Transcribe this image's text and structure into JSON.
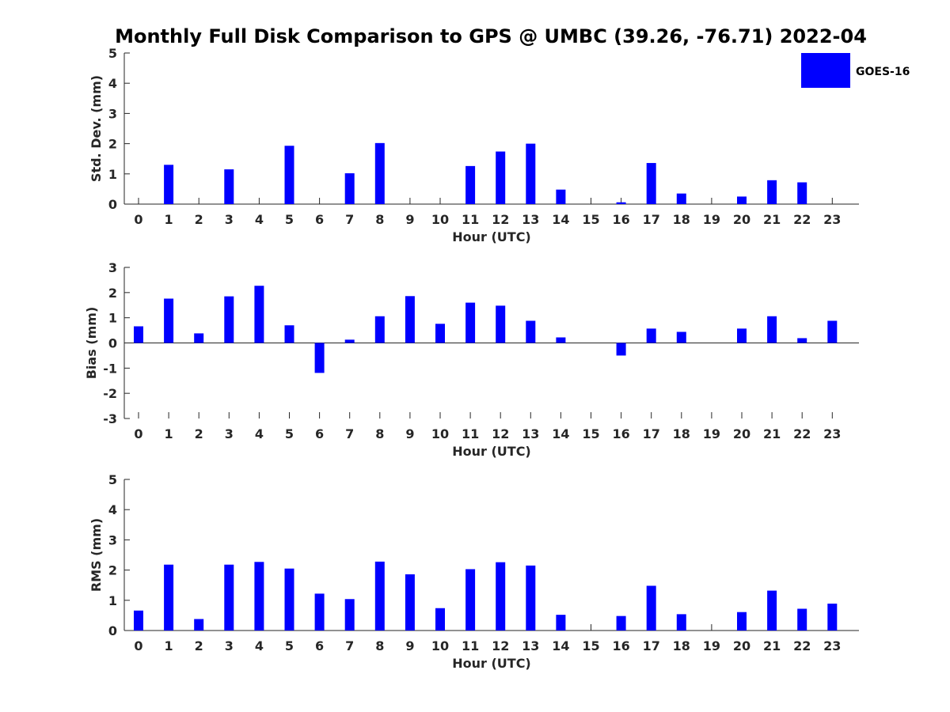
{
  "figure": {
    "title": "Monthly Full Disk Comparison to GPS @ UMBC (39.26, -76.71) 2022-04"
  },
  "legend": {
    "label": "GOES-16",
    "color": "#0000ff"
  },
  "chart_data": [
    {
      "type": "bar",
      "ylabel": "Std. Dev. (mm)",
      "xlabel": "Hour (UTC)",
      "ylim": [
        0,
        5
      ],
      "yticks": [
        0,
        1,
        2,
        3,
        4,
        5
      ],
      "categories": [
        "0",
        "1",
        "2",
        "3",
        "4",
        "5",
        "6",
        "7",
        "8",
        "9",
        "10",
        "11",
        "12",
        "13",
        "14",
        "15",
        "16",
        "17",
        "18",
        "19",
        "20",
        "21",
        "22",
        "23"
      ],
      "series": [
        {
          "name": "GOES-16",
          "color": "#0000ff",
          "values": [
            0,
            1.3,
            0,
            1.15,
            0,
            1.93,
            0,
            1.02,
            2.02,
            0,
            0,
            1.26,
            1.74,
            2.0,
            0.48,
            0,
            0.06,
            1.36,
            0.35,
            0,
            0.25,
            0.79,
            0.72,
            0
          ]
        }
      ],
      "legend": "top-right",
      "grid": false
    },
    {
      "type": "bar",
      "ylabel": "Bias (mm)",
      "xlabel": "Hour (UTC)",
      "ylim": [
        -3,
        3
      ],
      "yticks": [
        -3,
        -2,
        -1,
        0,
        1,
        2,
        3
      ],
      "categories": [
        "0",
        "1",
        "2",
        "3",
        "4",
        "5",
        "6",
        "7",
        "8",
        "9",
        "10",
        "11",
        "12",
        "13",
        "14",
        "15",
        "16",
        "17",
        "18",
        "19",
        "20",
        "21",
        "22",
        "23"
      ],
      "series": [
        {
          "name": "GOES-16",
          "color": "#0000ff",
          "values": [
            0.66,
            1.76,
            0.38,
            1.85,
            2.27,
            0.7,
            -1.19,
            0.13,
            1.06,
            1.86,
            0.76,
            1.6,
            1.48,
            0.88,
            0.22,
            0,
            -0.5,
            0.57,
            0.44,
            0,
            0.57,
            1.06,
            0.19,
            0.88
          ]
        }
      ],
      "grid": false
    },
    {
      "type": "bar",
      "ylabel": "RMS (mm)",
      "xlabel": "Hour (UTC)",
      "ylim": [
        0,
        5
      ],
      "yticks": [
        0,
        1,
        2,
        3,
        4,
        5
      ],
      "categories": [
        "0",
        "1",
        "2",
        "3",
        "4",
        "5",
        "6",
        "7",
        "8",
        "9",
        "10",
        "11",
        "12",
        "13",
        "14",
        "15",
        "16",
        "17",
        "18",
        "19",
        "20",
        "21",
        "22",
        "23"
      ],
      "series": [
        {
          "name": "GOES-16",
          "color": "#0000ff",
          "values": [
            0.66,
            2.18,
            0.38,
            2.18,
            2.27,
            2.05,
            1.22,
            1.04,
            2.28,
            1.86,
            0.74,
            2.03,
            2.26,
            2.15,
            0.52,
            0,
            0.48,
            1.48,
            0.54,
            0,
            0.61,
            1.32,
            0.72,
            0.89
          ]
        }
      ],
      "grid": false
    }
  ]
}
